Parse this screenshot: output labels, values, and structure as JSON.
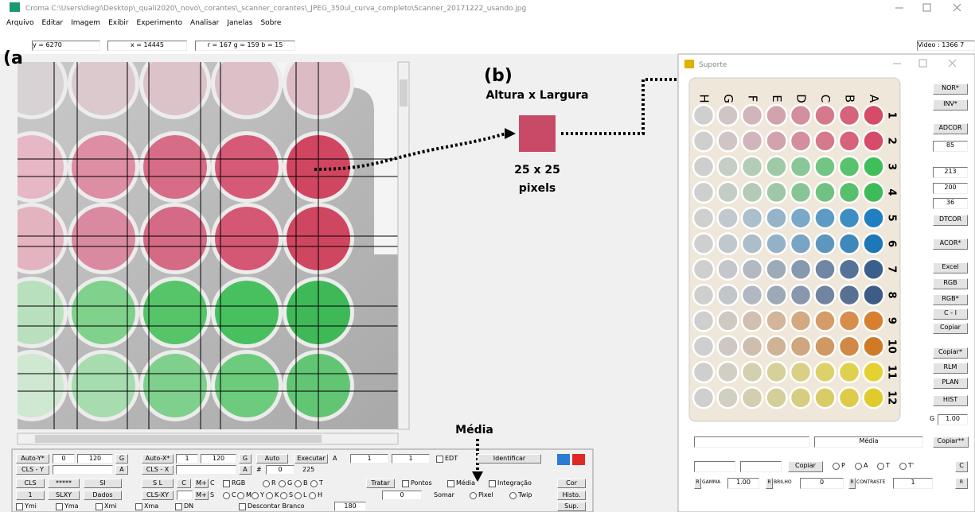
{
  "window": {
    "title": "Croma C:\\Users\\diegi\\Desktop\\_quali2020\\_novo\\_corantes\\_scanner_corantes\\_JPEG_350ul_curva_completo\\Scanner_20171222_usando.jpg",
    "menu": [
      "Arquivo",
      "Editar",
      "Imagem",
      "Exibir",
      "Experimento",
      "Analisar",
      "Janelas",
      "Sobre"
    ]
  },
  "status": {
    "y": "y = 6270",
    "x": "x = 14445",
    "rgb": "r = 167  g = 159  b = 15",
    "video": "Video : 1366 7"
  },
  "annotations": {
    "label_a": "(a",
    "label_b": "(b)",
    "size_title": "Altura x Largura",
    "size_value": "25 x 25",
    "size_unit": "pixels",
    "mean": "Média"
  },
  "panel": {
    "rows": [
      [
        "Auto-Y*",
        "0",
        "120",
        "G",
        "Auto-X*",
        "1",
        "120",
        "G",
        "Auto",
        "Executar",
        "A",
        "1",
        "1",
        "EDT",
        "Identificar"
      ],
      [
        "CLS - Y",
        "A",
        "CLS - X",
        "A",
        "#",
        "0",
        "225"
      ],
      [
        "CLS",
        "*****",
        "SI",
        "S L",
        "C",
        "M+",
        "C",
        "RGB",
        "R",
        "G",
        "B",
        "T",
        "Tratar",
        "Pontos",
        "Média",
        "Integração",
        "Cor"
      ],
      [
        "1",
        "SLXY",
        "Dados",
        "CLS-XY",
        "M+",
        "S",
        "C",
        "M",
        "Y",
        "K",
        "S",
        "L",
        "H",
        "0",
        "Somar",
        "Pixel",
        "Twip",
        "Histo."
      ],
      [
        "Ymi",
        "Yma",
        "Xmi",
        "Xma",
        "DN",
        "Descontar Branco",
        "180",
        "Sup."
      ]
    ]
  },
  "suporte": {
    "title": "Suporte",
    "columns": [
      "H",
      "G",
      "F",
      "E",
      "D",
      "C",
      "B",
      "A"
    ],
    "rows": [
      "1",
      "2",
      "3",
      "4",
      "5",
      "6",
      "7",
      "8",
      "9",
      "10",
      "11",
      "12"
    ],
    "well_colors": [
      "#d64b68",
      "#d84a69",
      "#3fbf5a",
      "#3dbb57",
      "#1f7fc0",
      "#1e78b8",
      "#3a5f8a",
      "#3d5c86",
      "#d98030",
      "#d07a28",
      "#e3d232",
      "#dfcb2c"
    ],
    "side": [
      "NOR*",
      "INV*",
      "ADCOR",
      "85",
      "213",
      "200",
      "36",
      "DTCOR",
      "ACOR*",
      "Excel",
      "RGB",
      "RGB*",
      "C - I",
      "Copiar",
      "Copiar*",
      "RLM",
      "PLAN",
      "HIST",
      "G",
      "1.00"
    ],
    "bottom": [
      [
        "Média",
        "Copiar**"
      ],
      [
        "Copiar",
        "P",
        "A",
        "T",
        "T'",
        "C"
      ],
      [
        "R",
        "GAMMA",
        "1.00",
        "R",
        "BRILHO",
        "0",
        "R",
        "CONTRASTE",
        "1",
        "R"
      ]
    ]
  }
}
